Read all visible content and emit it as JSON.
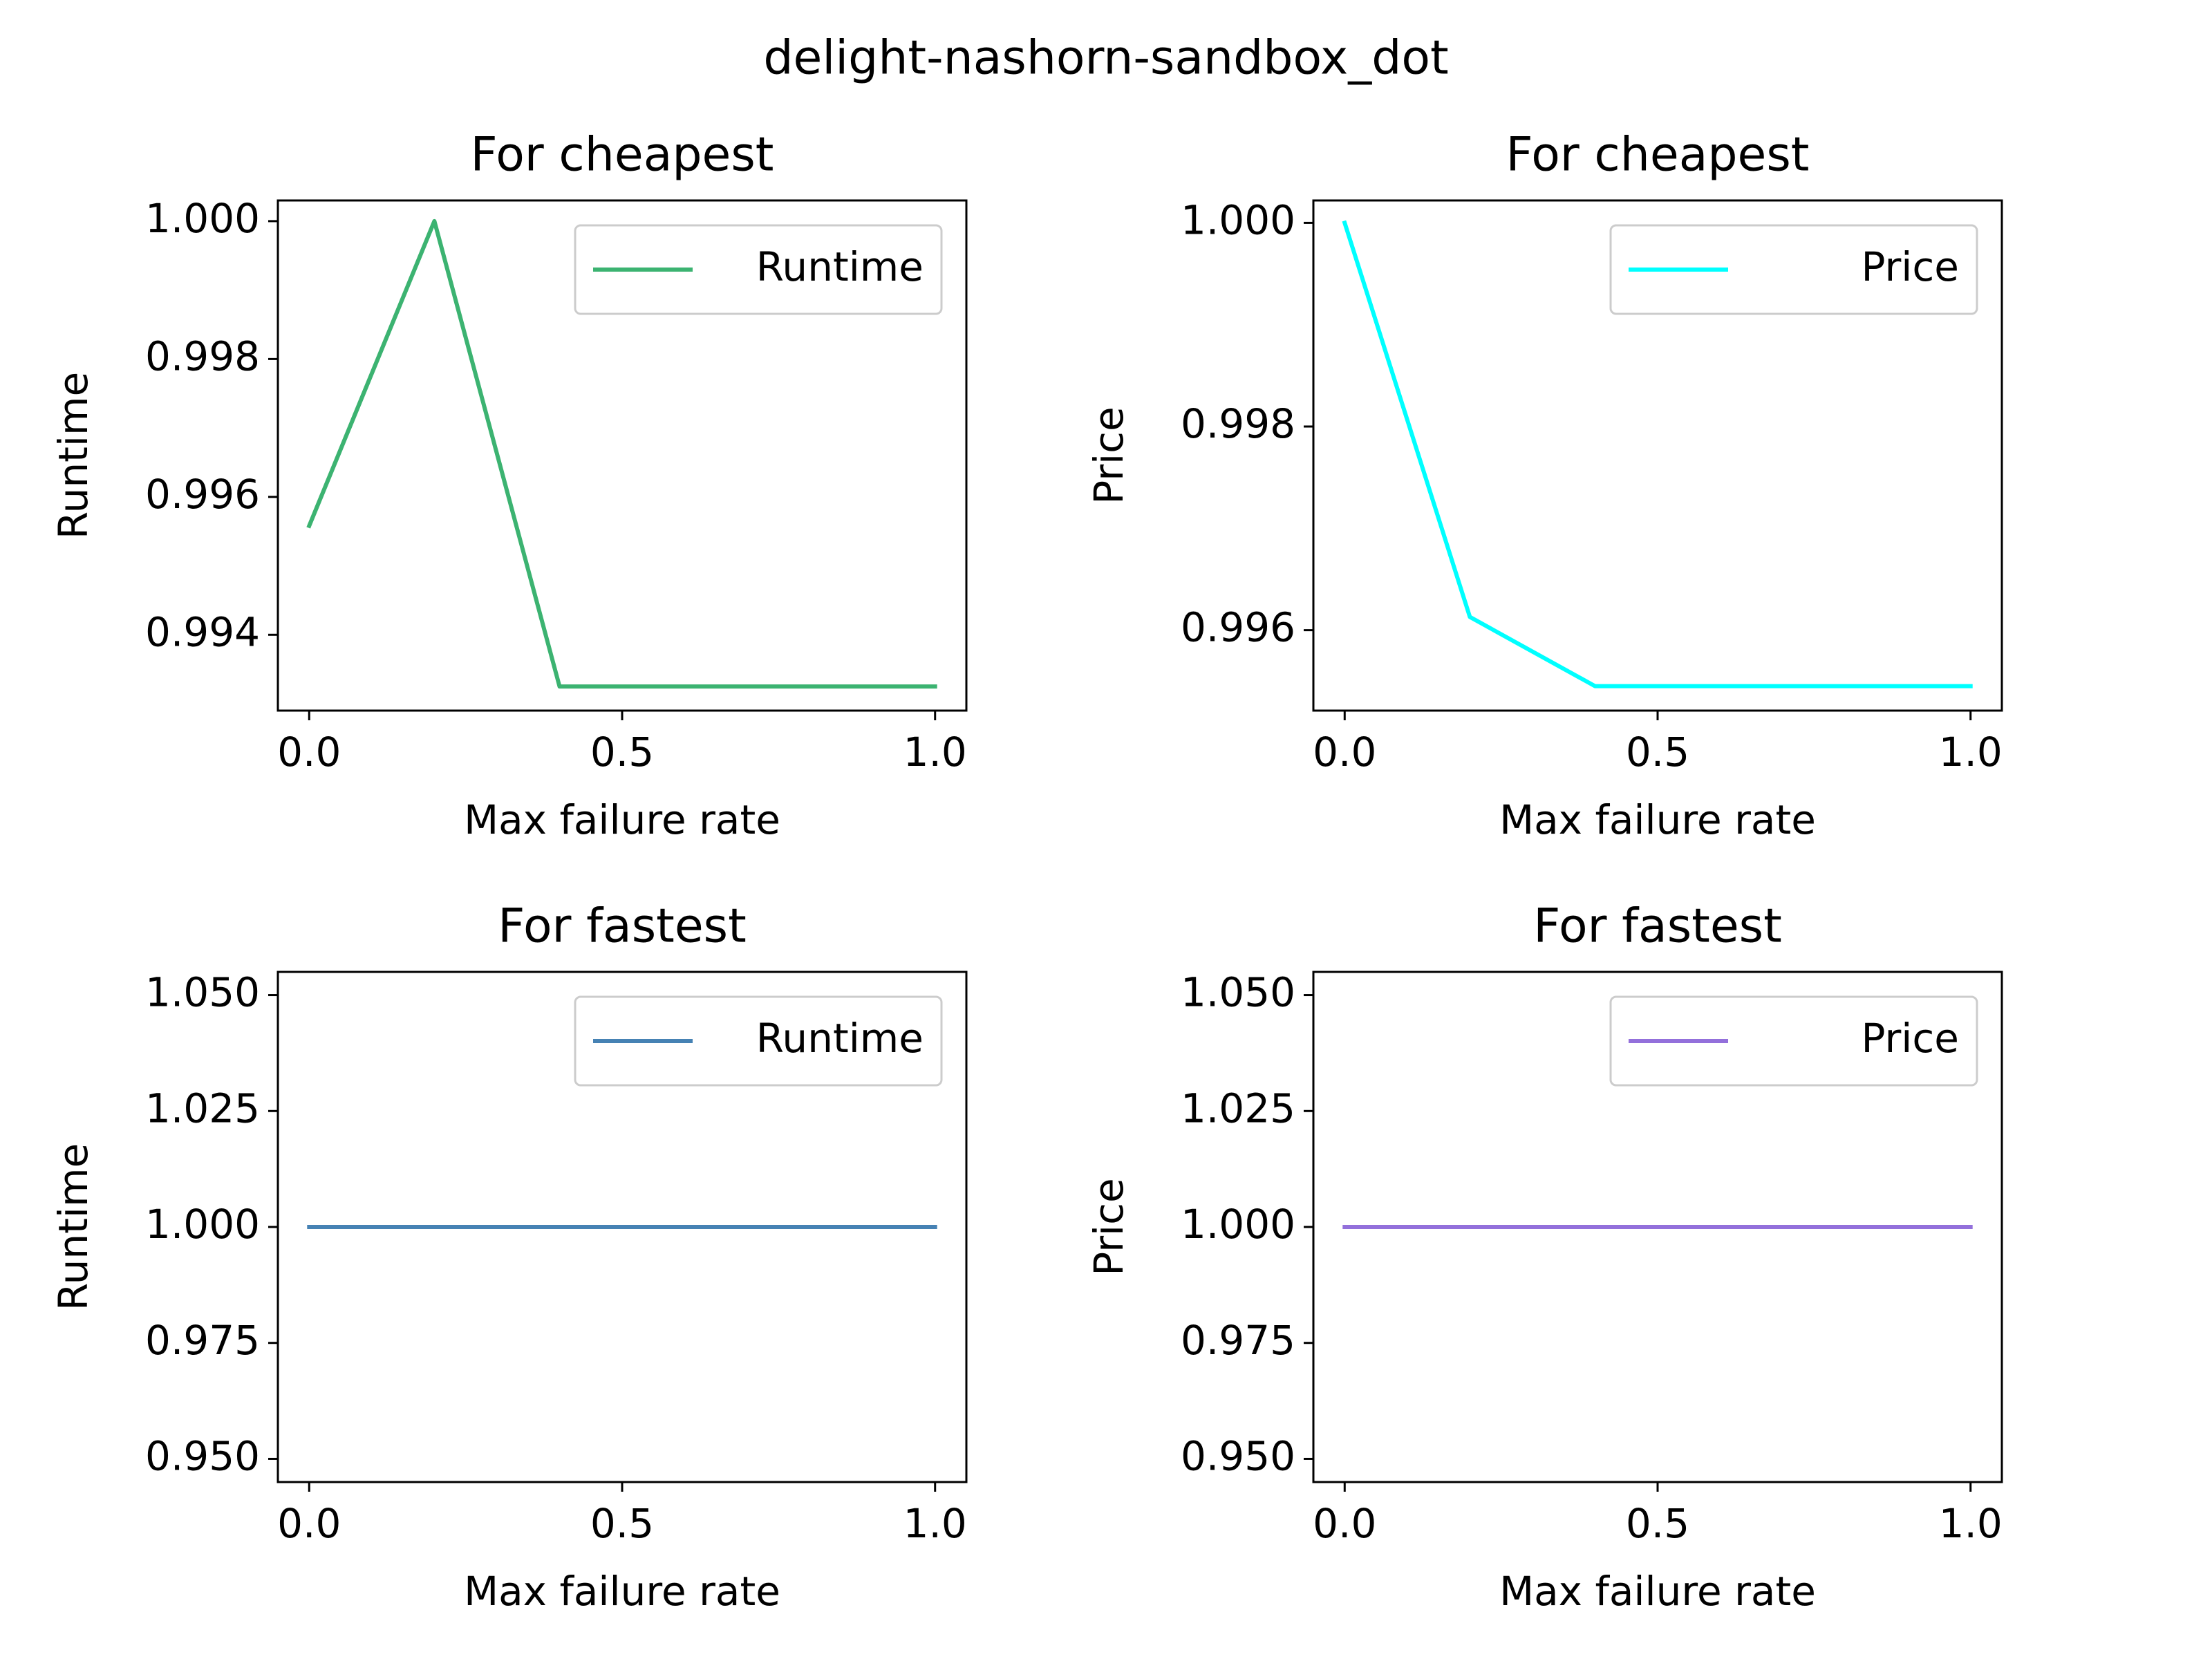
{
  "figure": {
    "suptitle": "delight-nashorn-sandbox_dot"
  },
  "chart_data": [
    {
      "type": "line",
      "title": "For cheapest",
      "xlabel": "Max failure rate",
      "ylabel": "Runtime",
      "xlim": [
        -0.05,
        1.05
      ],
      "ylim": [
        0.9929,
        1.0003
      ],
      "xticks": [
        0.0,
        0.5,
        1.0
      ],
      "xtick_labels": [
        "0.0",
        "0.5",
        "1.0"
      ],
      "yticks": [
        0.994,
        0.996,
        0.998,
        1.0
      ],
      "ytick_labels": [
        "0.994",
        "0.996",
        "0.998",
        "1.000"
      ],
      "legend_position": "top-right",
      "grid": false,
      "series": [
        {
          "name": "Runtime",
          "color": "#3cb371",
          "x": [
            0.0,
            0.2,
            0.4,
            0.6,
            0.8,
            1.0
          ],
          "y": [
            0.99558,
            1.0,
            0.99325,
            0.99325,
            0.99325,
            0.99325
          ]
        }
      ]
    },
    {
      "type": "line",
      "title": "For cheapest",
      "xlabel": "Max failure rate",
      "ylabel": "Price",
      "xlim": [
        -0.05,
        1.05
      ],
      "ylim": [
        0.99521,
        1.00022
      ],
      "xticks": [
        0.0,
        0.5,
        1.0
      ],
      "xtick_labels": [
        "0.0",
        "0.5",
        "1.0"
      ],
      "yticks": [
        0.996,
        0.998,
        1.0
      ],
      "ytick_labels": [
        "0.996",
        "0.998",
        "1.000"
      ],
      "legend_position": "top-right",
      "grid": false,
      "series": [
        {
          "name": "Price",
          "color": "#00ffff",
          "x": [
            0.0,
            0.2,
            0.4,
            0.6,
            0.8,
            1.0
          ],
          "y": [
            1.0,
            0.99613,
            0.99545,
            0.99545,
            0.99545,
            0.99545
          ]
        }
      ]
    },
    {
      "type": "line",
      "title": "For fastest",
      "xlabel": "Max failure rate",
      "ylabel": "Runtime",
      "xlim": [
        -0.05,
        1.05
      ],
      "ylim": [
        0.945,
        1.055
      ],
      "xticks": [
        0.0,
        0.5,
        1.0
      ],
      "xtick_labels": [
        "0.0",
        "0.5",
        "1.0"
      ],
      "yticks": [
        0.95,
        0.975,
        1.0,
        1.025,
        1.05
      ],
      "ytick_labels": [
        "0.950",
        "0.975",
        "1.000",
        "1.025",
        "1.050"
      ],
      "legend_position": "top-right",
      "grid": false,
      "series": [
        {
          "name": "Runtime",
          "color": "#4682b4",
          "x": [
            0.0,
            0.2,
            0.4,
            0.6,
            0.8,
            1.0
          ],
          "y": [
            1.0,
            1.0,
            1.0,
            1.0,
            1.0,
            1.0
          ]
        }
      ]
    },
    {
      "type": "line",
      "title": "For fastest",
      "xlabel": "Max failure rate",
      "ylabel": "Price",
      "xlim": [
        -0.05,
        1.05
      ],
      "ylim": [
        0.945,
        1.055
      ],
      "xticks": [
        0.0,
        0.5,
        1.0
      ],
      "xtick_labels": [
        "0.0",
        "0.5",
        "1.0"
      ],
      "yticks": [
        0.95,
        0.975,
        1.0,
        1.025,
        1.05
      ],
      "ytick_labels": [
        "0.950",
        "0.975",
        "1.000",
        "1.025",
        "1.050"
      ],
      "legend_position": "top-right",
      "grid": false,
      "series": [
        {
          "name": "Price",
          "color": "#9370db",
          "x": [
            0.0,
            0.2,
            0.4,
            0.6,
            0.8,
            1.0
          ],
          "y": [
            1.0,
            1.0,
            1.0,
            1.0,
            1.0,
            1.0
          ]
        }
      ]
    }
  ]
}
